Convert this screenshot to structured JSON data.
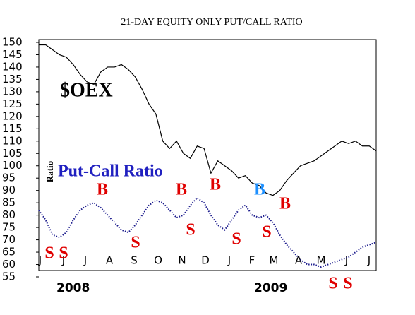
{
  "chart_data": {
    "type": "line",
    "title": "21-DAY EQUITY ONLY PUT/CALL RATIO",
    "y_label": "Ratio",
    "ylim": [
      55,
      150
    ],
    "yticks": [
      55,
      60,
      65,
      70,
      75,
      80,
      85,
      90,
      95,
      100,
      105,
      110,
      115,
      120,
      125,
      130,
      135,
      140,
      145,
      150
    ],
    "months": [
      "J",
      "J",
      "J",
      "A",
      "S",
      "O",
      "N",
      "D",
      "J",
      "F",
      "M",
      "A",
      "M",
      "J",
      "J"
    ],
    "years": [
      "2008",
      "2009"
    ],
    "series": [
      {
        "name": "$OEX",
        "color": "#000000",
        "values": [
          149,
          149,
          147,
          145,
          144,
          141,
          137,
          134,
          133,
          138,
          140,
          140,
          141,
          139,
          136,
          131,
          125,
          121,
          110,
          107,
          110,
          105,
          103,
          108,
          107,
          97,
          102,
          100,
          98,
          95,
          96,
          93,
          92,
          89,
          88,
          90,
          94,
          97,
          100,
          101,
          102,
          104,
          106,
          108,
          110,
          109,
          110,
          108,
          108,
          106
        ]
      },
      {
        "name": "Put-Call Ratio",
        "color": "#1a1a8c",
        "values": [
          82,
          78,
          72,
          71,
          73,
          78,
          82,
          84,
          85,
          83,
          80,
          77,
          74,
          73,
          76,
          80,
          84,
          86,
          85,
          82,
          79,
          80,
          84,
          87,
          85,
          80,
          76,
          74,
          78,
          82,
          84,
          80,
          79,
          80,
          77,
          72,
          68,
          65,
          62,
          60,
          60,
          59,
          60,
          61,
          62,
          63,
          65,
          67,
          68,
          69
        ]
      }
    ],
    "signals": [
      {
        "text": "S",
        "color": "#e00000"
      },
      {
        "text": "S",
        "color": "#e00000"
      },
      {
        "text": "B",
        "color": "#e00000"
      },
      {
        "text": "S",
        "color": "#e00000"
      },
      {
        "text": "B",
        "color": "#e00000"
      },
      {
        "text": "S",
        "color": "#e00000"
      },
      {
        "text": "B",
        "color": "#e00000"
      },
      {
        "text": "S",
        "color": "#e00000"
      },
      {
        "text": "B",
        "color": "#1e90ff"
      },
      {
        "text": "S",
        "color": "#e00000"
      },
      {
        "text": "B",
        "color": "#e00000"
      },
      {
        "text": "S",
        "color": "#e00000"
      },
      {
        "text": "S",
        "color": "#e00000"
      }
    ]
  }
}
